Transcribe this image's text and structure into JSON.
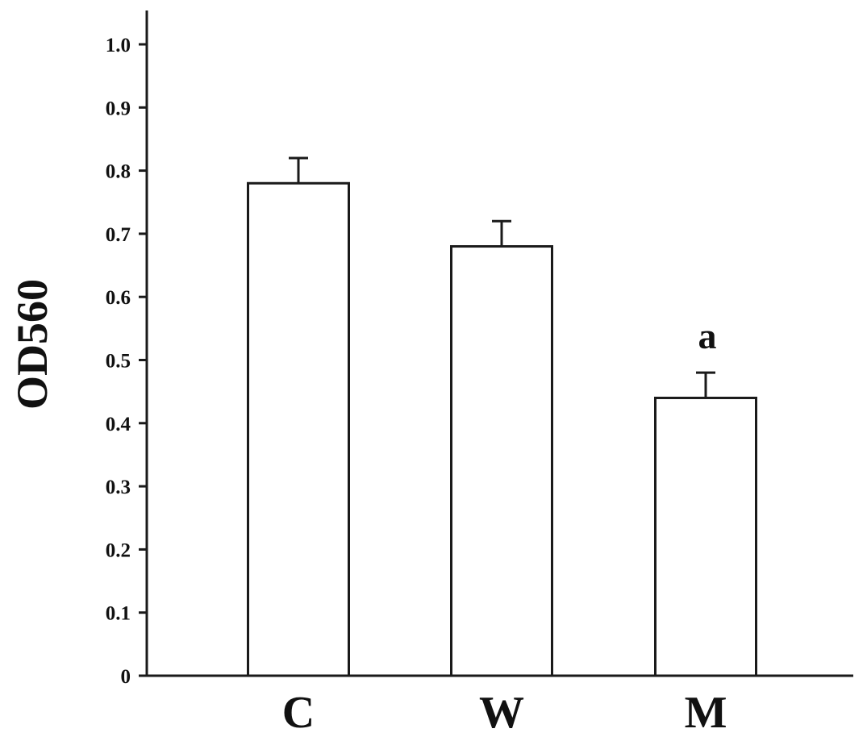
{
  "chart_data": {
    "type": "bar",
    "title": "",
    "xlabel": "",
    "ylabel": "OD560",
    "categories": [
      "C",
      "W",
      "M"
    ],
    "values": [
      0.78,
      0.68,
      0.44
    ],
    "errors": [
      0.04,
      0.04,
      0.04
    ],
    "annotations": [
      {
        "category": "M",
        "text": "a"
      }
    ],
    "ylim": [
      0,
      1.0
    ],
    "yticks": [
      "0",
      "0.1",
      "0.2",
      "0.3",
      "0.4",
      "0.5",
      "0.6",
      "0.7",
      "0.8",
      "0.9",
      "1.0"
    ],
    "grid": false,
    "bar_fill": "#ffffff",
    "bar_stroke": "#1a1a1a"
  }
}
